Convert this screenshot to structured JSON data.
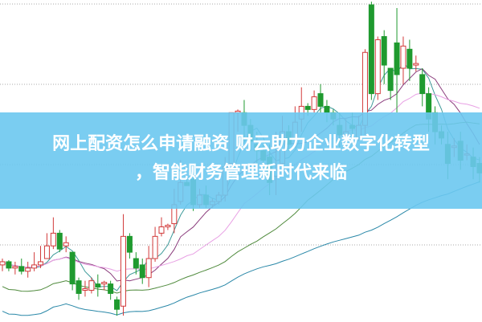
{
  "title": {
    "line1": "网上配资怎么申请融资 财云助力企业数字化转型",
    "line2": "，智能财务管理新时代来临"
  },
  "colors": {
    "up": "#d23a3a",
    "down": "#1f9a2f",
    "grid": "#aaaaaa",
    "banner": "#6cc8f0",
    "ma": [
      "#3e9a9a",
      "#8a3c7c",
      "#e8a0e4",
      "#4f8a3c",
      "#2a88a8"
    ]
  },
  "chart_data": {
    "type": "candlestick",
    "ylim": [
      0,
      100
    ],
    "grid": true,
    "moving_average_periods": [
      5,
      10,
      20,
      30,
      60
    ],
    "candle_fields": [
      "open",
      "close",
      "high",
      "low"
    ],
    "candles": [
      [
        18,
        19,
        20,
        16
      ],
      [
        19,
        17,
        19.5,
        16
      ],
      [
        17,
        17.5,
        19,
        15
      ],
      [
        17.5,
        16,
        20,
        15
      ],
      [
        16,
        17,
        19,
        14
      ],
      [
        17,
        18,
        22,
        16
      ],
      [
        18,
        19,
        24,
        17
      ],
      [
        20,
        24,
        28,
        20
      ],
      [
        24,
        28,
        33,
        23
      ],
      [
        28,
        23,
        29,
        22
      ],
      [
        24,
        25,
        27,
        22
      ],
      [
        22,
        12,
        22,
        10
      ],
      [
        13,
        9,
        14,
        7
      ],
      [
        10,
        10.5,
        13,
        8
      ],
      [
        10,
        13,
        14,
        9
      ],
      [
        12,
        11,
        15,
        8
      ],
      [
        12,
        12.5,
        13,
        10
      ],
      [
        12,
        9,
        13,
        7
      ],
      [
        7,
        4,
        8,
        2
      ],
      [
        5,
        27,
        34,
        2
      ],
      [
        27,
        22,
        28,
        20
      ],
      [
        20,
        17,
        22,
        15
      ],
      [
        18,
        14,
        20,
        12
      ],
      [
        14,
        20,
        24,
        11
      ],
      [
        20,
        27,
        30,
        19
      ],
      [
        28,
        30,
        33,
        27
      ],
      [
        30,
        30.5,
        31,
        29
      ],
      [
        31,
        37,
        42,
        28
      ],
      [
        38,
        44,
        51,
        37
      ],
      [
        44,
        43,
        45,
        43
      ],
      [
        45,
        37,
        46,
        35
      ],
      [
        37,
        40,
        42,
        36
      ],
      [
        40,
        37,
        43,
        36
      ],
      [
        37,
        38,
        39,
        36
      ],
      [
        38,
        40,
        41,
        37
      ],
      [
        40,
        49,
        52,
        38
      ],
      [
        50,
        66,
        66,
        48
      ],
      [
        66,
        66.5,
        67,
        60
      ],
      [
        66,
        62,
        70,
        57
      ],
      [
        62,
        57,
        64,
        54
      ],
      [
        56,
        54,
        60,
        50
      ],
      [
        54,
        51,
        56,
        50
      ],
      [
        52,
        44,
        56,
        40
      ],
      [
        46,
        48,
        60,
        40
      ],
      [
        50,
        60,
        65,
        47
      ],
      [
        60,
        56,
        62,
        54
      ],
      [
        58,
        63,
        68,
        55
      ],
      [
        64,
        68,
        74,
        60
      ],
      [
        68,
        67,
        69,
        65
      ],
      [
        67,
        71,
        73,
        66
      ],
      [
        72,
        68,
        75,
        66
      ],
      [
        68,
        66,
        70,
        63
      ],
      [
        66,
        64,
        67,
        62
      ],
      [
        62,
        59,
        66,
        55
      ],
      [
        59,
        60,
        64,
        55
      ],
      [
        62,
        61,
        66,
        56
      ],
      [
        58,
        62,
        65,
        57
      ],
      [
        62,
        85,
        86,
        59
      ],
      [
        100,
        72,
        101,
        70
      ],
      [
        72,
        89,
        90,
        70
      ],
      [
        90,
        81,
        92,
        75
      ],
      [
        80,
        73,
        80,
        70
      ],
      [
        88,
        78,
        99,
        66
      ],
      [
        80,
        87,
        90,
        75
      ],
      [
        86,
        80,
        89,
        76
      ],
      [
        81,
        81.5,
        84,
        79
      ],
      [
        78,
        72,
        80,
        68
      ],
      [
        72,
        64,
        74,
        60
      ],
      [
        66,
        60,
        68,
        56
      ],
      [
        60,
        58,
        62,
        56
      ],
      [
        56,
        50,
        60,
        45
      ],
      [
        55,
        55.5,
        58,
        52
      ],
      [
        57,
        51,
        60,
        48
      ],
      [
        53,
        53,
        56,
        51
      ],
      [
        52,
        49,
        55,
        45
      ],
      [
        50,
        47,
        52,
        44
      ]
    ]
  }
}
